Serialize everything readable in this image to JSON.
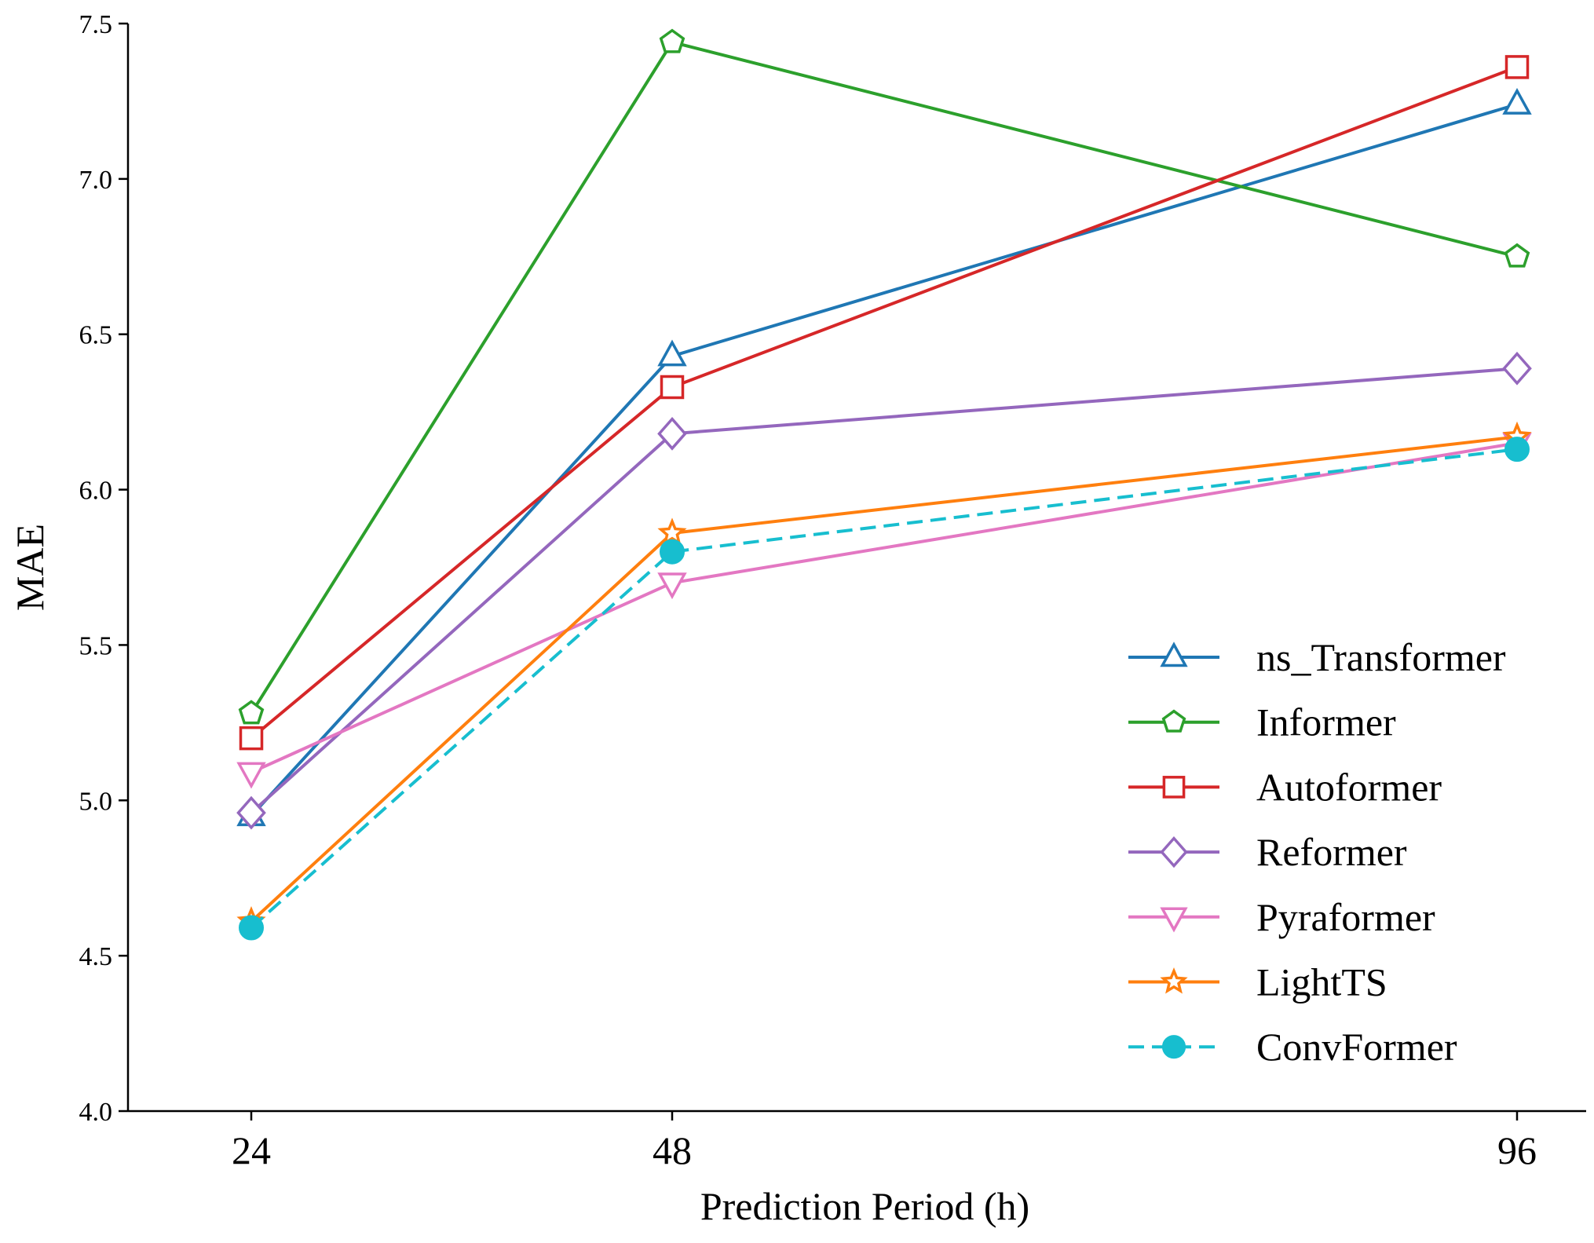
{
  "chart_data": {
    "type": "line",
    "title": "",
    "xlabel": "Prediction Period (h)",
    "ylabel": "MAE",
    "categories": [
      "24",
      "48",
      "96"
    ],
    "ylim": [
      4.0,
      7.5
    ],
    "yticks": [
      "4.0",
      "4.5",
      "5.0",
      "5.5",
      "6.0",
      "6.5",
      "7.0",
      "7.5"
    ],
    "grid": false,
    "legend_position": "bottom-right",
    "series": [
      {
        "name": "ns_Transformer",
        "values": [
          4.95,
          6.43,
          7.24
        ],
        "color": "#1f77b4",
        "marker": "triangle-up",
        "dash": false
      },
      {
        "name": "Informer",
        "values": [
          5.28,
          7.44,
          6.75
        ],
        "color": "#2ca02c",
        "marker": "pentagon",
        "dash": false
      },
      {
        "name": "Autoformer",
        "values": [
          5.2,
          6.33,
          7.36
        ],
        "color": "#d62728",
        "marker": "square",
        "dash": false
      },
      {
        "name": "Reformer",
        "values": [
          4.96,
          6.18,
          6.39
        ],
        "color": "#9467bd",
        "marker": "diamond",
        "dash": false
      },
      {
        "name": "Pyraformer",
        "values": [
          5.09,
          5.7,
          6.15
        ],
        "color": "#e377c2",
        "marker": "triangle-down",
        "dash": false
      },
      {
        "name": "LightTS",
        "values": [
          4.61,
          5.86,
          6.17
        ],
        "color": "#ff7f0e",
        "marker": "star",
        "dash": false
      },
      {
        "name": "ConvFormer",
        "values": [
          4.59,
          5.8,
          6.13
        ],
        "color": "#17becf",
        "marker": "circle",
        "dash": true
      }
    ]
  }
}
